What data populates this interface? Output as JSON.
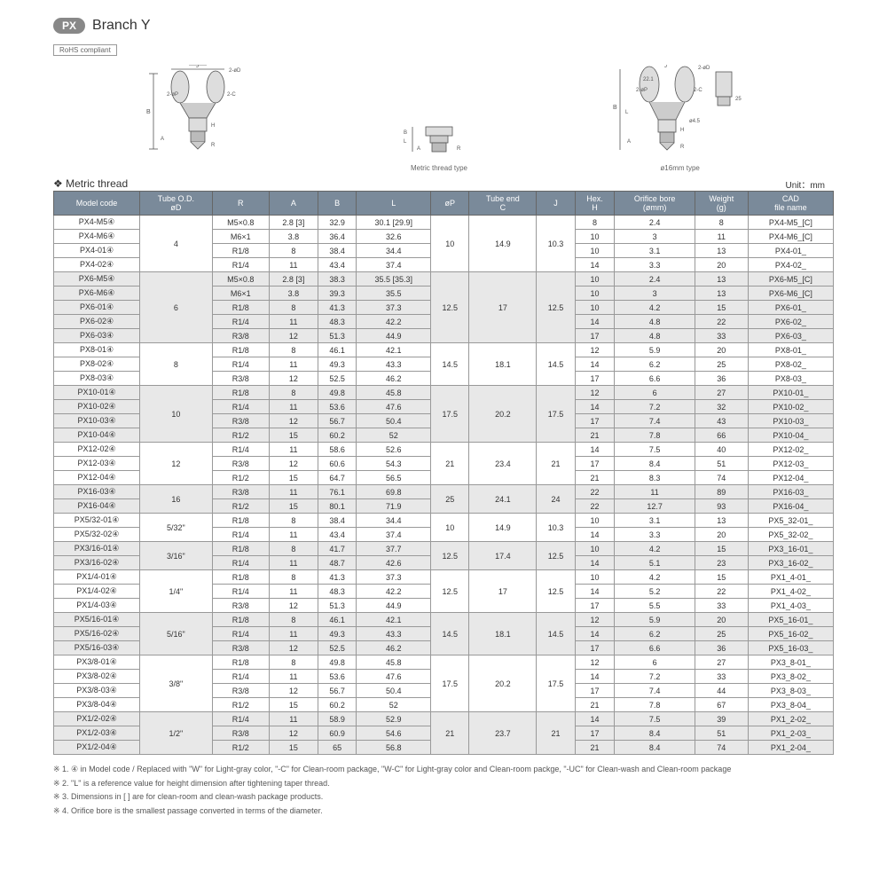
{
  "header": {
    "badge": "PX",
    "title": "Branch Y",
    "rohs": "RoHS compliant"
  },
  "section": {
    "label": "❖ Metric thread",
    "unit": "Unit：mm"
  },
  "diag_labels": {
    "mid": "Metric thread type",
    "right": "ø16mm type"
  },
  "columns": [
    "Model code",
    "Tube O.D.\nøD",
    "R",
    "A",
    "B",
    "L",
    "øP",
    "Tube end\nC",
    "J",
    "Hex.\nH",
    "Orifice bore\n(ømm)",
    "Weight\n(g)",
    "CAD\nfile name"
  ],
  "groups": [
    {
      "grey": false,
      "od": "4",
      "op": "10",
      "c": "14.9",
      "j": "10.3",
      "rows": [
        {
          "m": "PX4-M5④",
          "r": "M5×0.8",
          "a": "2.8 [3]",
          "b": "32.9",
          "l": "30.1 [29.9]",
          "h": "8",
          "ob": "2.4",
          "w": "8",
          "cad": "PX4-M5_[C]"
        },
        {
          "m": "PX4-M6④",
          "r": "M6×1",
          "a": "3.8",
          "b": "36.4",
          "l": "32.6",
          "h": "10",
          "ob": "3",
          "w": "11",
          "cad": "PX4-M6_[C]"
        },
        {
          "m": "PX4-01④",
          "r": "R1/8",
          "a": "8",
          "b": "38.4",
          "l": "34.4",
          "h": "10",
          "ob": "3.1",
          "w": "13",
          "cad": "PX4-01_"
        },
        {
          "m": "PX4-02④",
          "r": "R1/4",
          "a": "11",
          "b": "43.4",
          "l": "37.4",
          "h": "14",
          "ob": "3.3",
          "w": "20",
          "cad": "PX4-02_"
        }
      ]
    },
    {
      "grey": true,
      "od": "6",
      "op": "12.5",
      "c": "17",
      "j": "12.5",
      "rows": [
        {
          "m": "PX6-M5④",
          "r": "M5×0.8",
          "a": "2.8 [3]",
          "b": "38.3",
          "l": "35.5 [35.3]",
          "h": "10",
          "ob": "2.4",
          "w": "13",
          "cad": "PX6-M5_[C]"
        },
        {
          "m": "PX6-M6④",
          "r": "M6×1",
          "a": "3.8",
          "b": "39.3",
          "l": "35.5",
          "h": "10",
          "ob": "3",
          "w": "13",
          "cad": "PX6-M6_[C]"
        },
        {
          "m": "PX6-01④",
          "r": "R1/8",
          "a": "8",
          "b": "41.3",
          "l": "37.3",
          "h": "10",
          "ob": "4.2",
          "w": "15",
          "cad": "PX6-01_"
        },
        {
          "m": "PX6-02④",
          "r": "R1/4",
          "a": "11",
          "b": "48.3",
          "l": "42.2",
          "h": "14",
          "ob": "4.8",
          "w": "22",
          "cad": "PX6-02_"
        },
        {
          "m": "PX6-03④",
          "r": "R3/8",
          "a": "12",
          "b": "51.3",
          "l": "44.9",
          "h": "17",
          "ob": "4.8",
          "w": "33",
          "cad": "PX6-03_"
        }
      ]
    },
    {
      "grey": false,
      "od": "8",
      "op": "14.5",
      "c": "18.1",
      "j": "14.5",
      "rows": [
        {
          "m": "PX8-01④",
          "r": "R1/8",
          "a": "8",
          "b": "46.1",
          "l": "42.1",
          "h": "12",
          "ob": "5.9",
          "w": "20",
          "cad": "PX8-01_"
        },
        {
          "m": "PX8-02④",
          "r": "R1/4",
          "a": "11",
          "b": "49.3",
          "l": "43.3",
          "h": "14",
          "ob": "6.2",
          "w": "25",
          "cad": "PX8-02_"
        },
        {
          "m": "PX8-03④",
          "r": "R3/8",
          "a": "12",
          "b": "52.5",
          "l": "46.2",
          "h": "17",
          "ob": "6.6",
          "w": "36",
          "cad": "PX8-03_"
        }
      ]
    },
    {
      "grey": true,
      "od": "10",
      "op": "17.5",
      "c": "20.2",
      "j": "17.5",
      "rows": [
        {
          "m": "PX10-01④",
          "r": "R1/8",
          "a": "8",
          "b": "49.8",
          "l": "45.8",
          "h": "12",
          "ob": "6",
          "w": "27",
          "cad": "PX10-01_"
        },
        {
          "m": "PX10-02④",
          "r": "R1/4",
          "a": "11",
          "b": "53.6",
          "l": "47.6",
          "h": "14",
          "ob": "7.2",
          "w": "32",
          "cad": "PX10-02_"
        },
        {
          "m": "PX10-03④",
          "r": "R3/8",
          "a": "12",
          "b": "56.7",
          "l": "50.4",
          "h": "17",
          "ob": "7.4",
          "w": "43",
          "cad": "PX10-03_"
        },
        {
          "m": "PX10-04④",
          "r": "R1/2",
          "a": "15",
          "b": "60.2",
          "l": "52",
          "h": "21",
          "ob": "7.8",
          "w": "66",
          "cad": "PX10-04_"
        }
      ]
    },
    {
      "grey": false,
      "od": "12",
      "op": "21",
      "c": "23.4",
      "j": "21",
      "rows": [
        {
          "m": "PX12-02④",
          "r": "R1/4",
          "a": "11",
          "b": "58.6",
          "l": "52.6",
          "h": "14",
          "ob": "7.5",
          "w": "40",
          "cad": "PX12-02_"
        },
        {
          "m": "PX12-03④",
          "r": "R3/8",
          "a": "12",
          "b": "60.6",
          "l": "54.3",
          "h": "17",
          "ob": "8.4",
          "w": "51",
          "cad": "PX12-03_"
        },
        {
          "m": "PX12-04④",
          "r": "R1/2",
          "a": "15",
          "b": "64.7",
          "l": "56.5",
          "h": "21",
          "ob": "8.3",
          "w": "74",
          "cad": "PX12-04_"
        }
      ]
    },
    {
      "grey": true,
      "od": "16",
      "op": "25",
      "c": "24.1",
      "j": "24",
      "rows": [
        {
          "m": "PX16-03④",
          "r": "R3/8",
          "a": "11",
          "b": "76.1",
          "l": "69.8",
          "h": "22",
          "ob": "11",
          "w": "89",
          "cad": "PX16-03_"
        },
        {
          "m": "PX16-04④",
          "r": "R1/2",
          "a": "15",
          "b": "80.1",
          "l": "71.9",
          "h": "22",
          "ob": "12.7",
          "w": "93",
          "cad": "PX16-04_"
        }
      ]
    },
    {
      "grey": false,
      "od": "5/32\"",
      "op": "10",
      "c": "14.9",
      "j": "10.3",
      "rows": [
        {
          "m": "PX5/32-01④",
          "r": "R1/8",
          "a": "8",
          "b": "38.4",
          "l": "34.4",
          "h": "10",
          "ob": "3.1",
          "w": "13",
          "cad": "PX5_32-01_"
        },
        {
          "m": "PX5/32-02④",
          "r": "R1/4",
          "a": "11",
          "b": "43.4",
          "l": "37.4",
          "h": "14",
          "ob": "3.3",
          "w": "20",
          "cad": "PX5_32-02_"
        }
      ]
    },
    {
      "grey": true,
      "od": "3/16\"",
      "op": "12.5",
      "c": "17.4",
      "j": "12.5",
      "rows": [
        {
          "m": "PX3/16-01④",
          "r": "R1/8",
          "a": "8",
          "b": "41.7",
          "l": "37.7",
          "h": "10",
          "ob": "4.2",
          "w": "15",
          "cad": "PX3_16-01_"
        },
        {
          "m": "PX3/16-02④",
          "r": "R1/4",
          "a": "11",
          "b": "48.7",
          "l": "42.6",
          "h": "14",
          "ob": "5.1",
          "w": "23",
          "cad": "PX3_16-02_"
        }
      ]
    },
    {
      "grey": false,
      "od": "1/4\"",
      "op": "12.5",
      "c": "17",
      "j": "12.5",
      "rows": [
        {
          "m": "PX1/4-01④",
          "r": "R1/8",
          "a": "8",
          "b": "41.3",
          "l": "37.3",
          "h": "10",
          "ob": "4.2",
          "w": "15",
          "cad": "PX1_4-01_"
        },
        {
          "m": "PX1/4-02④",
          "r": "R1/4",
          "a": "11",
          "b": "48.3",
          "l": "42.2",
          "h": "14",
          "ob": "5.2",
          "w": "22",
          "cad": "PX1_4-02_"
        },
        {
          "m": "PX1/4-03④",
          "r": "R3/8",
          "a": "12",
          "b": "51.3",
          "l": "44.9",
          "h": "17",
          "ob": "5.5",
          "w": "33",
          "cad": "PX1_4-03_"
        }
      ]
    },
    {
      "grey": true,
      "od": "5/16\"",
      "op": "14.5",
      "c": "18.1",
      "j": "14.5",
      "rows": [
        {
          "m": "PX5/16-01④",
          "r": "R1/8",
          "a": "8",
          "b": "46.1",
          "l": "42.1",
          "h": "12",
          "ob": "5.9",
          "w": "20",
          "cad": "PX5_16-01_"
        },
        {
          "m": "PX5/16-02④",
          "r": "R1/4",
          "a": "11",
          "b": "49.3",
          "l": "43.3",
          "h": "14",
          "ob": "6.2",
          "w": "25",
          "cad": "PX5_16-02_"
        },
        {
          "m": "PX5/16-03④",
          "r": "R3/8",
          "a": "12",
          "b": "52.5",
          "l": "46.2",
          "h": "17",
          "ob": "6.6",
          "w": "36",
          "cad": "PX5_16-03_"
        }
      ]
    },
    {
      "grey": false,
      "od": "3/8\"",
      "op": "17.5",
      "c": "20.2",
      "j": "17.5",
      "rows": [
        {
          "m": "PX3/8-01④",
          "r": "R1/8",
          "a": "8",
          "b": "49.8",
          "l": "45.8",
          "h": "12",
          "ob": "6",
          "w": "27",
          "cad": "PX3_8-01_"
        },
        {
          "m": "PX3/8-02④",
          "r": "R1/4",
          "a": "11",
          "b": "53.6",
          "l": "47.6",
          "h": "14",
          "ob": "7.2",
          "w": "33",
          "cad": "PX3_8-02_"
        },
        {
          "m": "PX3/8-03④",
          "r": "R3/8",
          "a": "12",
          "b": "56.7",
          "l": "50.4",
          "h": "17",
          "ob": "7.4",
          "w": "44",
          "cad": "PX3_8-03_"
        },
        {
          "m": "PX3/8-04④",
          "r": "R1/2",
          "a": "15",
          "b": "60.2",
          "l": "52",
          "h": "21",
          "ob": "7.8",
          "w": "67",
          "cad": "PX3_8-04_"
        }
      ]
    },
    {
      "grey": true,
      "od": "1/2\"",
      "op": "21",
      "c": "23.7",
      "j": "21",
      "rows": [
        {
          "m": "PX1/2-02④",
          "r": "R1/4",
          "a": "11",
          "b": "58.9",
          "l": "52.9",
          "h": "14",
          "ob": "7.5",
          "w": "39",
          "cad": "PX1_2-02_"
        },
        {
          "m": "PX1/2-03④",
          "r": "R3/8",
          "a": "12",
          "b": "60.9",
          "l": "54.6",
          "h": "17",
          "ob": "8.4",
          "w": "51",
          "cad": "PX1_2-03_"
        },
        {
          "m": "PX1/2-04④",
          "r": "R1/2",
          "a": "15",
          "b": "65",
          "l": "56.8",
          "h": "21",
          "ob": "8.4",
          "w": "74",
          "cad": "PX1_2-04_"
        }
      ]
    }
  ],
  "notes": [
    "※ 1. ④ in Model code / Replaced with \"W\" for Light-gray color, \"-C\" for Clean-room package, \"W-C\" for Light-gray color and Clean-room packge, \"-UC\" for Clean-wash and Clean-room package",
    "※ 2. \"L\" is a reference value for height dimension after tightening taper thread.",
    "※ 3. Dimensions in [ ] are for clean-room and clean-wash package products.",
    "※ 4. Orifice bore is the smallest passage converted in terms of the diameter."
  ]
}
